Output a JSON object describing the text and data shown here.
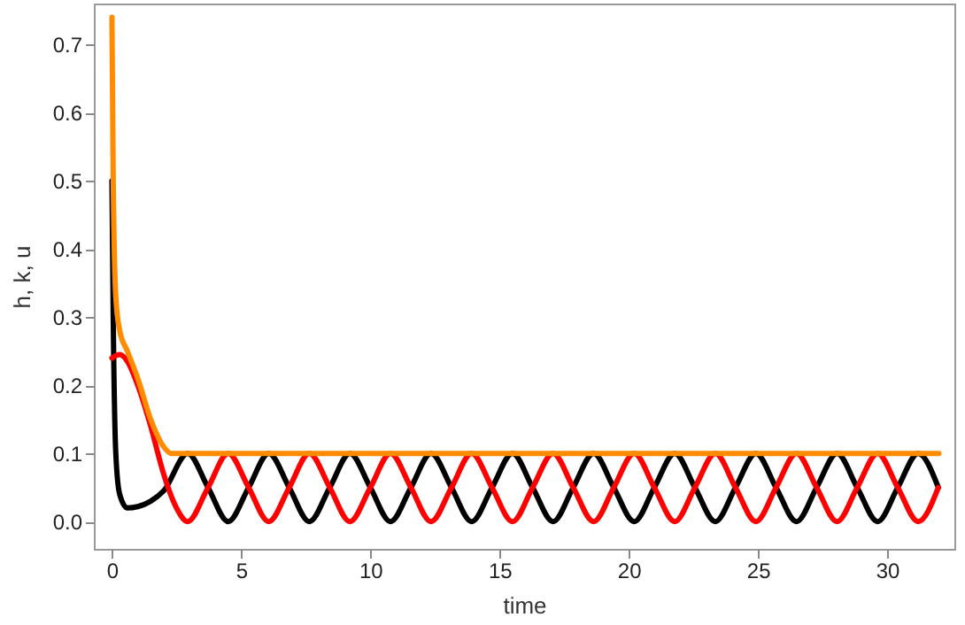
{
  "chart_data": {
    "type": "line",
    "xlabel": "time",
    "ylabel": "h, k, u",
    "xlim": [
      -0.7,
      32.6
    ],
    "ylim": [
      -0.04,
      0.76
    ],
    "xticks": [
      0,
      5,
      10,
      15,
      20,
      25,
      30
    ],
    "yticks": [
      {
        "value": 0,
        "label": "0.0"
      },
      0.1,
      0.2,
      0.3,
      0.4,
      0.5,
      0.6,
      0.7
    ],
    "grid": false,
    "marker": "none",
    "line_style": "solid",
    "series": [
      {
        "color": "#000000",
        "x": [
          0,
          0.05,
          0.15,
          0.3,
          0.6,
          1.0,
          1.5,
          2.0,
          2.93,
          3.72,
          4.5,
          5.29,
          6.07,
          6.86,
          7.64,
          8.43,
          9.21,
          10.0,
          10.78,
          11.57,
          12.35,
          13.14,
          13.92,
          14.71,
          15.5,
          16.28,
          17.07,
          17.85,
          18.64,
          19.42,
          20.21,
          20.99,
          21.78,
          22.56,
          23.35,
          24.13,
          24.92,
          25.7,
          26.49,
          27.27,
          28.06,
          28.84,
          29.63,
          30.41,
          31.2,
          31.98
        ],
        "values": [
          0.5,
          0.3,
          0.1,
          0.04,
          0.02,
          0.022,
          0.03,
          0.045,
          0.1,
          0.05,
          0,
          0.05,
          0.1,
          0.05,
          0,
          0.05,
          0.1,
          0.05,
          0,
          0.05,
          0.1,
          0.05,
          0,
          0.05,
          0.1,
          0.05,
          0,
          0.05,
          0.1,
          0.05,
          0,
          0.05,
          0.1,
          0.05,
          0,
          0.05,
          0.1,
          0.05,
          0,
          0.05,
          0.1,
          0.05,
          0,
          0.05,
          0.1,
          0.05
        ]
      },
      {
        "color": "#ff0000",
        "x": [
          0,
          0.3,
          0.6,
          1.0,
          1.5,
          2.0,
          2.5,
          2.93,
          3.72,
          4.5,
          5.29,
          6.07,
          6.86,
          7.64,
          8.43,
          9.21,
          10.0,
          10.78,
          11.57,
          12.35,
          13.14,
          13.92,
          14.71,
          15.5,
          16.28,
          17.07,
          17.85,
          18.64,
          19.42,
          20.21,
          20.99,
          21.78,
          22.56,
          23.35,
          24.13,
          24.92,
          25.7,
          26.49,
          27.27,
          28.06,
          28.84,
          29.63,
          30.41,
          31.2,
          31.98
        ],
        "values": [
          0.24,
          0.245,
          0.235,
          0.2,
          0.14,
          0.07,
          0.02,
          0,
          0.05,
          0.1,
          0.05,
          0,
          0.05,
          0.1,
          0.05,
          0,
          0.05,
          0.1,
          0.05,
          0,
          0.05,
          0.1,
          0.05,
          0,
          0.05,
          0.1,
          0.05,
          0,
          0.05,
          0.1,
          0.05,
          0,
          0.05,
          0.1,
          0.05,
          0,
          0.05,
          0.1,
          0.05,
          0,
          0.05,
          0.1,
          0.05,
          0,
          0.05
        ]
      },
      {
        "color": "#ff8c00",
        "x": [
          0,
          0.05,
          0.15,
          0.3,
          0.6,
          1.0,
          1.5,
          2.0,
          2.3,
          10,
          20,
          32
        ],
        "values": [
          0.74,
          0.5,
          0.33,
          0.28,
          0.25,
          0.21,
          0.15,
          0.11,
          0.1,
          0.1,
          0.1,
          0.1
        ]
      }
    ]
  }
}
